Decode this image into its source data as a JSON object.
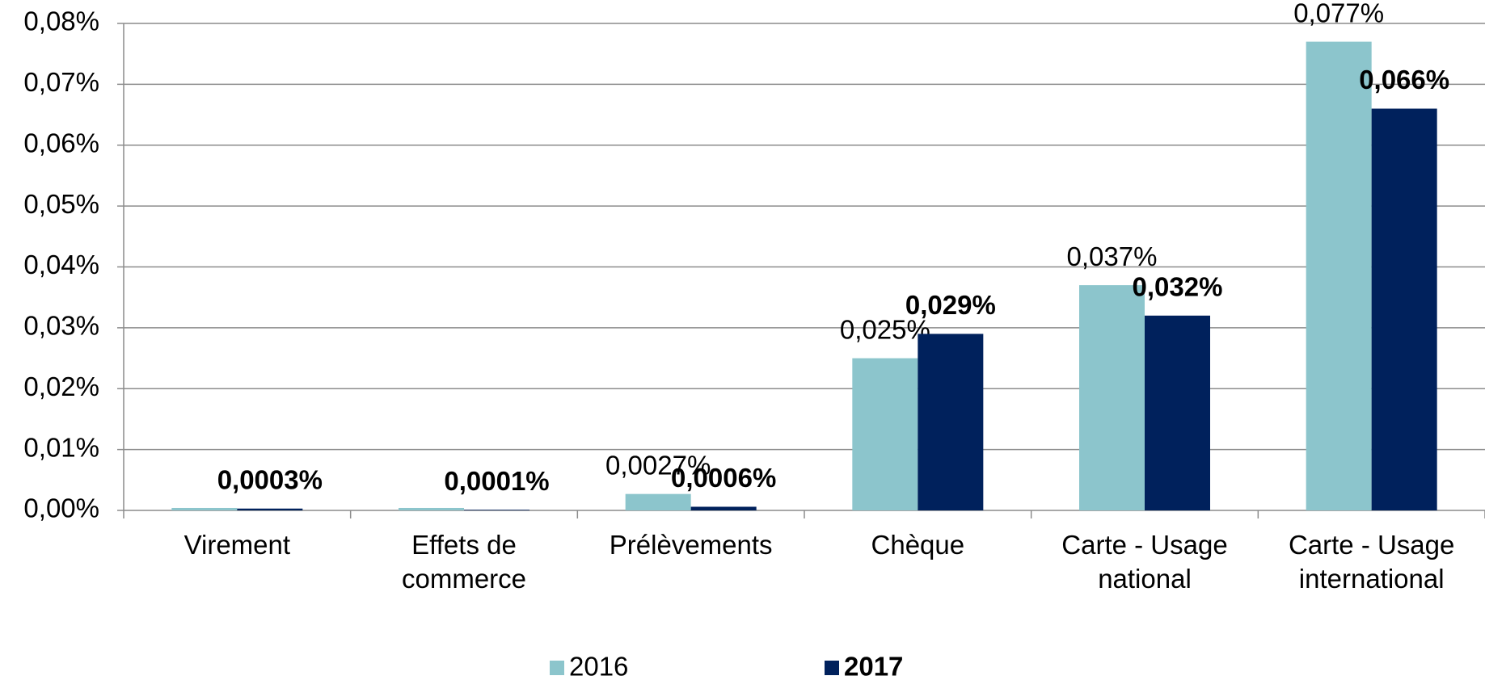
{
  "chart_data": {
    "type": "bar",
    "categories": [
      "Virement",
      "Effets de\ncommerce",
      "Prélèvements",
      "Chèque",
      "Carte - Usage\nnational",
      "Carte - Usage\ninternational"
    ],
    "series": [
      {
        "name": "2016",
        "color": "#8cc5cc",
        "values": [
          0.0004,
          0.0004,
          0.0027,
          0.025,
          0.037,
          0.077
        ],
        "value_labels": [
          null,
          null,
          "0,0027%",
          "0,025%",
          "0,037%",
          "0,077%"
        ]
      },
      {
        "name": "2017",
        "color": "#00215c",
        "values": [
          0.0003,
          0.0001,
          0.0006,
          0.029,
          0.032,
          0.066
        ],
        "value_labels": [
          "0,0003%",
          "0,0001%",
          "0,0006%",
          "0,029%",
          "0,032%",
          "0,066%"
        ]
      }
    ],
    "ylim": [
      0,
      0.08
    ],
    "yticks": [
      {
        "value": 0,
        "label": "0,00%"
      },
      {
        "value": 0.01,
        "label": "0,01%"
      },
      {
        "value": 0.02,
        "label": "0,02%"
      },
      {
        "value": 0.03,
        "label": "0,03%"
      },
      {
        "value": 0.04,
        "label": "0,04%"
      },
      {
        "value": 0.05,
        "label": "0,05%"
      },
      {
        "value": 0.06,
        "label": "0,06%"
      },
      {
        "value": 0.07,
        "label": "0,07%"
      },
      {
        "value": 0.08,
        "label": "0,08%"
      }
    ],
    "grid": true,
    "legend": "bottom"
  }
}
